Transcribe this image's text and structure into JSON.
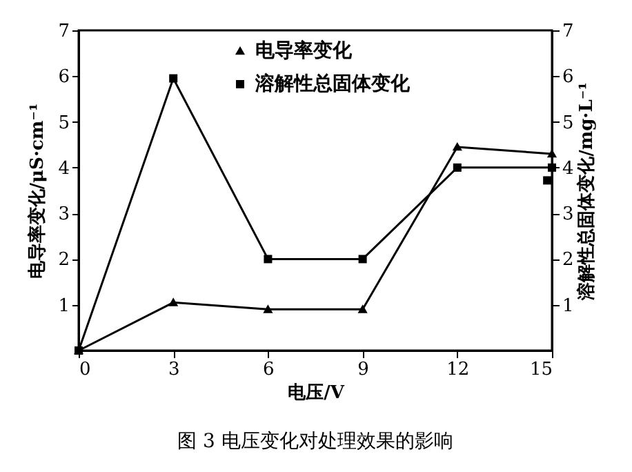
{
  "chart_data": {
    "type": "line",
    "xlabel": "电压/V",
    "ylabel": "电导率变化/μS·cm⁻¹",
    "y2label": "溶解性总固体变化/mg·L⁻¹",
    "x": [
      0,
      3,
      6,
      9,
      12,
      15
    ],
    "xlim": [
      0,
      15
    ],
    "xticks": [
      0,
      3,
      6,
      9,
      12,
      15
    ],
    "ylim": [
      0,
      7
    ],
    "yticks": [
      1,
      2,
      3,
      4,
      5,
      6,
      7
    ],
    "y2lim": [
      0,
      7
    ],
    "y2ticks": [
      1,
      2,
      3,
      4,
      5,
      6,
      7
    ],
    "series": [
      {
        "name": "电导率变化",
        "color": "#000000",
        "marker": "triangle",
        "values": [
          0,
          1.05,
          0.9,
          0.9,
          4.45,
          4.3
        ]
      },
      {
        "name": "溶解性总固体变化",
        "color": "#000000",
        "marker": "square",
        "axis": "y2",
        "values": [
          0,
          5.95,
          2,
          2,
          4,
          4
        ]
      },
      {
        "type": "scatter",
        "color": "#000000",
        "marker": "square",
        "axis": "y2",
        "x": [
          14.85
        ],
        "values": [
          3.72
        ]
      }
    ],
    "legend": "top",
    "grid": false,
    "annotations": [
      "图 3    电压变化对处理效果的影响"
    ]
  }
}
